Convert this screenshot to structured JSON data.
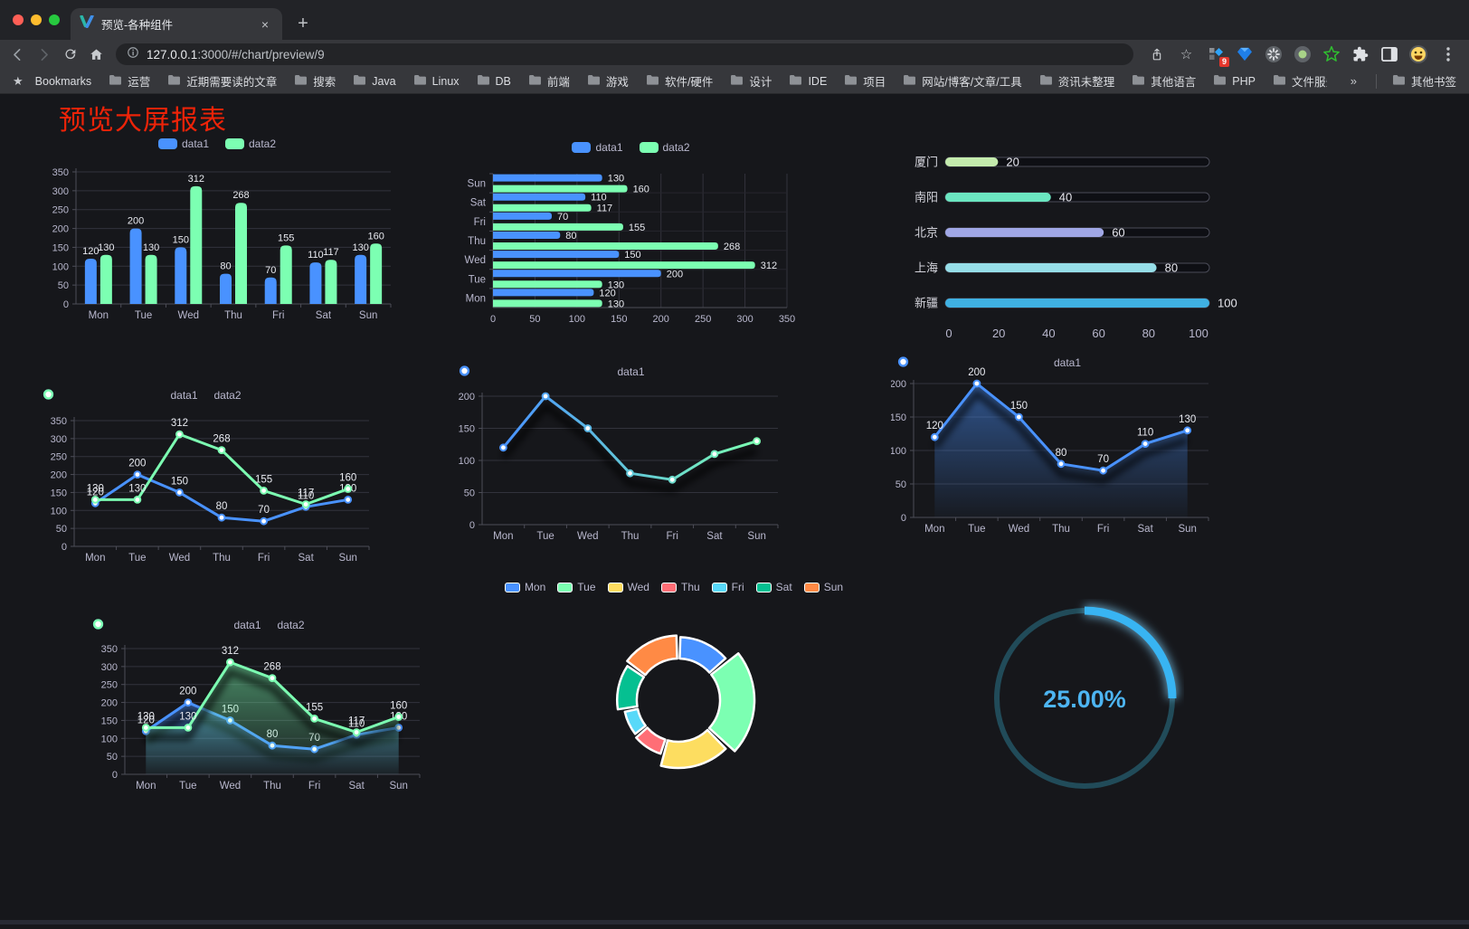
{
  "browser": {
    "tab_title": "预览-各种组件",
    "new_tab_label": "+",
    "close_label": "×",
    "url_host": "127.0.0.1",
    "url_rest": ":3000/#/chart/preview/9",
    "bookmarks_label": "Bookmarks",
    "bookmarks": [
      "运营",
      "近期需要读的文章",
      "搜索",
      "Java",
      "Linux",
      "DB",
      "前端",
      "游戏",
      "软件/硬件",
      "设计",
      "IDE",
      "项目",
      "网站/博客/文章/工具",
      "资讯未整理",
      "其他语言",
      "PHP",
      "文件服务器"
    ],
    "bookmarks_overflow": "»",
    "other_bookmarks": "其他书签",
    "extension_badge": "9"
  },
  "page": {
    "title": "预览大屏报表",
    "title_color": "#ed2308",
    "background": "#16171b"
  },
  "chart_data": [
    {
      "variant": "grouped-column",
      "type": "bar",
      "categories": [
        "Mon",
        "Tue",
        "Wed",
        "Thu",
        "Fri",
        "Sat",
        "Sun"
      ],
      "series": [
        {
          "name": "data1",
          "color": "#4992ff",
          "values": [
            120,
            200,
            150,
            80,
            70,
            110,
            130
          ]
        },
        {
          "name": "data2",
          "color": "#7cffb2",
          "values": [
            130,
            130,
            312,
            268,
            155,
            117,
            160
          ]
        }
      ],
      "ylim": [
        0,
        350
      ],
      "ytick": 50,
      "legend_position": "top",
      "grid": true
    },
    {
      "variant": "horizontal-bar",
      "type": "bar",
      "categories": [
        "Mon",
        "Tue",
        "Wed",
        "Thu",
        "Fri",
        "Sat",
        "Sun"
      ],
      "series": [
        {
          "name": "data1",
          "color": "#4992ff",
          "values": [
            120,
            200,
            150,
            80,
            70,
            110,
            130
          ]
        },
        {
          "name": "data2",
          "color": "#7cffb2",
          "values": [
            130,
            130,
            312,
            268,
            155,
            117,
            160
          ]
        }
      ],
      "xlim": [
        0,
        350
      ],
      "xtick": 50,
      "legend_position": "top",
      "grid": true
    },
    {
      "variant": "progress",
      "type": "bar",
      "rows": [
        {
          "label": "厦门",
          "value": 20,
          "color": "#c4ebad"
        },
        {
          "label": "南阳",
          "value": 40,
          "color": "#6be6c1"
        },
        {
          "label": "北京",
          "value": 60,
          "color": "#a0a7e6"
        },
        {
          "label": "上海",
          "value": 80,
          "color": "#96dee8"
        },
        {
          "label": "新疆",
          "value": 100,
          "color": "#3fb1e3"
        }
      ],
      "xlim": [
        0,
        100
      ],
      "xticks": [
        0,
        20,
        40,
        60,
        80,
        100
      ]
    },
    {
      "variant": "multi-line",
      "type": "line",
      "categories": [
        "Mon",
        "Tue",
        "Wed",
        "Thu",
        "Fri",
        "Sat",
        "Sun"
      ],
      "series": [
        {
          "name": "data1",
          "color": "#4992ff",
          "values": [
            120,
            200,
            150,
            80,
            70,
            110,
            130
          ]
        },
        {
          "name": "data2",
          "color": "#7cffb2",
          "values": [
            130,
            130,
            312,
            268,
            155,
            117,
            160
          ]
        }
      ],
      "ylim": [
        0,
        350
      ],
      "ytick": 50,
      "show_labels": true,
      "legend_position": "top"
    },
    {
      "variant": "gradient-line",
      "type": "line",
      "categories": [
        "Mon",
        "Tue",
        "Wed",
        "Thu",
        "Fri",
        "Sat",
        "Sun"
      ],
      "series": [
        {
          "name": "data1",
          "gradient": [
            "#4992ff",
            "#7cffb2"
          ],
          "values": [
            120,
            200,
            150,
            80,
            70,
            110,
            130
          ]
        }
      ],
      "ylim": [
        0,
        200
      ],
      "ytick": 50,
      "show_labels": false,
      "shadow": true,
      "legend_position": "top"
    },
    {
      "variant": "area",
      "type": "area",
      "categories": [
        "Mon",
        "Tue",
        "Wed",
        "Thu",
        "Fri",
        "Sat",
        "Sun"
      ],
      "series": [
        {
          "name": "data1",
          "color": "#4992ff",
          "values": [
            120,
            200,
            150,
            80,
            70,
            110,
            130
          ]
        }
      ],
      "ylim": [
        0,
        200
      ],
      "ytick": 50,
      "show_labels": true,
      "shadow": true,
      "legend_position": "top"
    },
    {
      "variant": "multi-area",
      "type": "area",
      "categories": [
        "Mon",
        "Tue",
        "Wed",
        "Thu",
        "Fri",
        "Sat",
        "Sun"
      ],
      "series": [
        {
          "name": "data1",
          "color": "#4992ff",
          "values": [
            120,
            200,
            150,
            80,
            70,
            110,
            130
          ]
        },
        {
          "name": "data2",
          "color": "#7cffb2",
          "values": [
            130,
            130,
            312,
            268,
            155,
            117,
            160
          ]
        }
      ],
      "ylim": [
        0,
        350
      ],
      "ytick": 50,
      "show_labels": true,
      "shadow": true,
      "legend_position": "top"
    },
    {
      "variant": "rose-donut",
      "type": "pie",
      "legend_position": "top",
      "slices": [
        {
          "label": "Mon",
          "value": 120,
          "color": "#4992ff"
        },
        {
          "label": "Tue",
          "value": 200,
          "color": "#7cffb2"
        },
        {
          "label": "Wed",
          "value": 150,
          "color": "#fddd60"
        },
        {
          "label": "Thu",
          "value": 80,
          "color": "#ff6e76"
        },
        {
          "label": "Fri",
          "value": 70,
          "color": "#58d9f9"
        },
        {
          "label": "Sat",
          "value": 110,
          "color": "#05c091"
        },
        {
          "label": "Sun",
          "value": 130,
          "color": "#ff8a45"
        }
      ]
    },
    {
      "variant": "ring-gauge",
      "type": "pie",
      "value": 25,
      "max": 100,
      "label": "25.00%",
      "color": "#38b4f2",
      "track_color": "#214b59",
      "text_color": "#4db5f2"
    }
  ]
}
